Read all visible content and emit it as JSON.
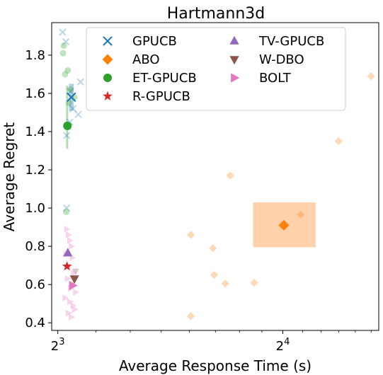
{
  "chart_data": {
    "type": "scatter",
    "title": "Hartmann3d",
    "xlabel": "Average Response Time (s)",
    "ylabel": "Average Regret",
    "x_scale": "log2",
    "xlim": [
      7.85,
      21.5
    ],
    "ylim": [
      0.36,
      1.97
    ],
    "x_ticks": [
      {
        "value": 8,
        "base": "2",
        "exp": "3"
      },
      {
        "value": 16,
        "base": "2",
        "exp": "4"
      }
    ],
    "y_ticks": [
      0.4,
      0.6,
      0.8,
      1.0,
      1.2,
      1.4,
      1.6,
      1.8
    ],
    "legend_position": "top",
    "series": [
      {
        "name": "GPUCB",
        "marker": "x",
        "color": "#1f77b4",
        "mean": {
          "x": 8.34,
          "y": 1.58
        },
        "error": {
          "x": [
            8.28,
            8.4
          ],
          "y": [
            1.51,
            1.65
          ]
        },
        "runs": [
          {
            "x": 8.12,
            "y": 1.92
          },
          {
            "x": 8.2,
            "y": 1.87
          },
          {
            "x": 8.58,
            "y": 1.66
          },
          {
            "x": 8.32,
            "y": 1.61
          },
          {
            "x": 8.38,
            "y": 1.52
          },
          {
            "x": 8.52,
            "y": 1.49
          },
          {
            "x": 8.3,
            "y": 1.45
          },
          {
            "x": 8.22,
            "y": 1.38
          },
          {
            "x": 8.22,
            "y": 1.0
          }
        ]
      },
      {
        "name": "ABO",
        "marker": "diamond",
        "color": "#ff7f0e",
        "mean": {
          "x": 16.05,
          "y": 0.91
        },
        "error": {
          "x": [
            14.6,
            17.7
          ],
          "y": [
            0.795,
            1.03
          ]
        },
        "runs": [
          {
            "x": 21.0,
            "y": 1.69
          },
          {
            "x": 19.0,
            "y": 1.35
          },
          {
            "x": 13.6,
            "y": 1.17
          },
          {
            "x": 16.9,
            "y": 0.965
          },
          {
            "x": 12.05,
            "y": 0.86
          },
          {
            "x": 12.9,
            "y": 0.79
          },
          {
            "x": 12.95,
            "y": 0.65
          },
          {
            "x": 13.4,
            "y": 0.605
          },
          {
            "x": 14.65,
            "y": 0.61
          },
          {
            "x": 12.05,
            "y": 0.435
          }
        ]
      },
      {
        "name": "ET-GPUCB",
        "marker": "circle",
        "color": "#2ca02c",
        "mean": {
          "x": 8.24,
          "y": 1.43
        },
        "error": {
          "x": [
            8.22,
            8.26
          ],
          "y": [
            1.31,
            1.64
          ]
        },
        "runs": [
          {
            "x": 8.15,
            "y": 1.85
          },
          {
            "x": 8.13,
            "y": 1.81
          },
          {
            "x": 8.25,
            "y": 1.72
          },
          {
            "x": 8.18,
            "y": 1.7
          },
          {
            "x": 8.32,
            "y": 1.62
          },
          {
            "x": 8.42,
            "y": 1.58
          },
          {
            "x": 8.28,
            "y": 1.55
          },
          {
            "x": 8.21,
            "y": 0.98
          }
        ]
      },
      {
        "name": "R-GPUCB",
        "marker": "star",
        "color": "#d62728",
        "mean": {
          "x": 8.23,
          "y": 0.695
        },
        "runs": []
      },
      {
        "name": "TV-GPUCB",
        "marker": "triangle-up",
        "color": "#9467bd",
        "mean": {
          "x": 8.25,
          "y": 0.765
        },
        "runs": []
      },
      {
        "name": "W-DBO",
        "marker": "triangle-down",
        "color": "#8c564b",
        "mean": {
          "x": 8.42,
          "y": 0.63
        },
        "runs": [
          {
            "x": 8.45,
            "y": 0.67
          }
        ]
      },
      {
        "name": "BOLT",
        "marker": "triangle-right",
        "color": "#e377c2",
        "mean": {
          "x": 8.37,
          "y": 0.595
        },
        "runs": [
          {
            "x": 8.22,
            "y": 0.89
          },
          {
            "x": 8.26,
            "y": 0.86
          },
          {
            "x": 8.3,
            "y": 0.83
          },
          {
            "x": 8.34,
            "y": 0.8
          },
          {
            "x": 8.2,
            "y": 0.76
          },
          {
            "x": 8.36,
            "y": 0.74
          },
          {
            "x": 8.28,
            "y": 0.7
          },
          {
            "x": 8.4,
            "y": 0.66
          },
          {
            "x": 8.24,
            "y": 0.63
          },
          {
            "x": 8.32,
            "y": 0.58
          },
          {
            "x": 8.45,
            "y": 0.56
          },
          {
            "x": 8.18,
            "y": 0.53
          },
          {
            "x": 8.3,
            "y": 0.51
          },
          {
            "x": 8.38,
            "y": 0.49
          },
          {
            "x": 8.42,
            "y": 0.47
          },
          {
            "x": 8.26,
            "y": 0.45
          },
          {
            "x": 8.34,
            "y": 0.43
          }
        ]
      }
    ]
  }
}
